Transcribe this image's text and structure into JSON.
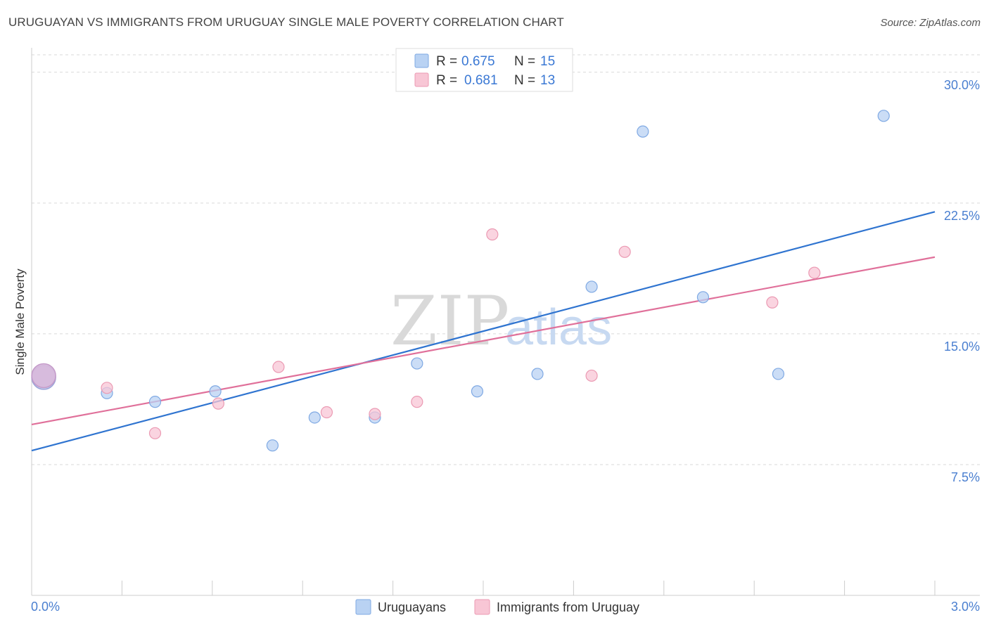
{
  "header": {
    "title": "URUGUAYAN VS IMMIGRANTS FROM URUGUAY SINGLE MALE POVERTY CORRELATION CHART",
    "source": "Source: ZipAtlas.com"
  },
  "watermark": {
    "zip": "ZIP",
    "atlas": "atlas"
  },
  "colors": {
    "blue_fill": "#b9d2f3",
    "blue_stroke": "#7fa9e3",
    "blue_line": "#2f74d0",
    "pink_fill": "#f8c6d5",
    "pink_stroke": "#eb9ab3",
    "pink_line": "#e0709a"
  },
  "legend": {
    "rows": [
      {
        "r_label": "R =",
        "r_value": "0.675",
        "n_label": "N =",
        "n_value": "15"
      },
      {
        "r_label": "R =",
        "r_value": "0.681",
        "n_label": "N =",
        "n_value": "13"
      }
    ]
  },
  "chart_data": {
    "type": "scatter",
    "title": "URUGUAYAN VS IMMIGRANTS FROM URUGUAY SINGLE MALE POVERTY CORRELATION CHART",
    "xlabel": "",
    "ylabel": "Single Male Poverty",
    "xlim": [
      0.0,
      3.0
    ],
    "ylim": [
      0.0,
      31.0
    ],
    "x_tick_labels": [
      "0.0%",
      "3.0%"
    ],
    "y_ticks": [
      7.5,
      15.0,
      22.5,
      30.0
    ],
    "y_tick_labels": [
      "7.5%",
      "15.0%",
      "22.5%",
      "30.0%"
    ],
    "grid": true,
    "legend_position": "top-center",
    "series": [
      {
        "name": "Uruguayans",
        "color": "#b9d2f3",
        "points": [
          {
            "x": 0.04,
            "y": 12.5,
            "size": "large"
          },
          {
            "x": 0.25,
            "y": 11.6
          },
          {
            "x": 0.41,
            "y": 11.1
          },
          {
            "x": 0.61,
            "y": 11.7
          },
          {
            "x": 0.8,
            "y": 8.6
          },
          {
            "x": 0.94,
            "y": 10.2
          },
          {
            "x": 1.14,
            "y": 10.2
          },
          {
            "x": 1.28,
            "y": 13.3
          },
          {
            "x": 1.48,
            "y": 11.7
          },
          {
            "x": 1.68,
            "y": 12.7
          },
          {
            "x": 1.86,
            "y": 17.7
          },
          {
            "x": 2.03,
            "y": 26.6
          },
          {
            "x": 2.23,
            "y": 17.1
          },
          {
            "x": 2.48,
            "y": 12.7
          },
          {
            "x": 2.83,
            "y": 27.5
          }
        ],
        "trend": {
          "x0": 0.0,
          "y0": 8.3,
          "x1": 3.0,
          "y1": 22.0
        }
      },
      {
        "name": "Immigrants from Uruguay",
        "color": "#f8c6d5",
        "points": [
          {
            "x": 0.04,
            "y": 12.6,
            "size": "large"
          },
          {
            "x": 0.25,
            "y": 11.9
          },
          {
            "x": 0.41,
            "y": 9.3
          },
          {
            "x": 0.62,
            "y": 11.0
          },
          {
            "x": 0.82,
            "y": 13.1
          },
          {
            "x": 0.98,
            "y": 10.5
          },
          {
            "x": 1.14,
            "y": 10.4
          },
          {
            "x": 1.28,
            "y": 11.1
          },
          {
            "x": 1.53,
            "y": 20.7
          },
          {
            "x": 1.86,
            "y": 12.6
          },
          {
            "x": 1.97,
            "y": 19.7
          },
          {
            "x": 2.46,
            "y": 16.8
          },
          {
            "x": 2.6,
            "y": 18.5
          }
        ],
        "trend": {
          "x0": 0.0,
          "y0": 9.8,
          "x1": 3.0,
          "y1": 19.4
        }
      }
    ]
  }
}
